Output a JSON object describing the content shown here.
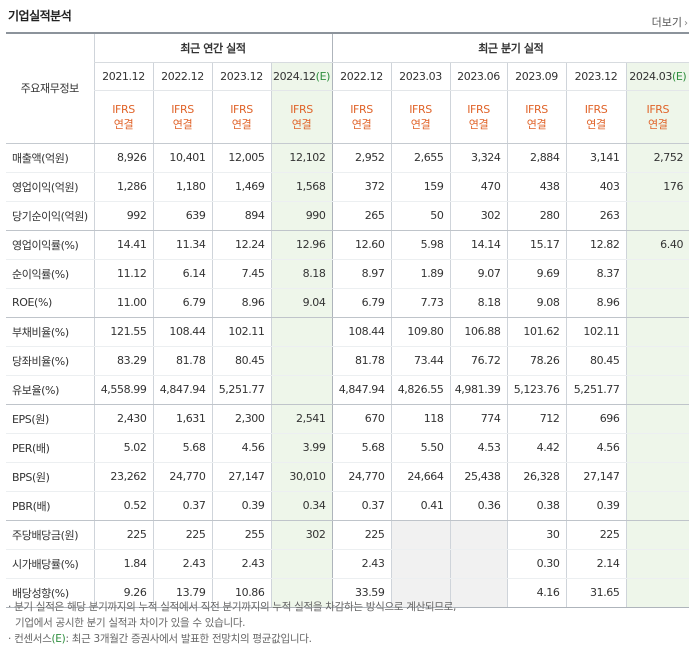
{
  "header": {
    "title": "기업실적분석",
    "more_label": "더보기"
  },
  "table": {
    "corner_label": "주요재무정보",
    "annual_label": "최근 연간 실적",
    "quarter_label": "최근 분기 실적",
    "annual_dates": [
      "2021.12",
      "2022.12",
      "2023.12",
      "2024.12(E)"
    ],
    "quarter_dates": [
      "2022.12",
      "2023.03",
      "2023.06",
      "2023.09",
      "2023.12",
      "2024.03(E)"
    ],
    "ifrs_top": "IFRS",
    "ifrs_bottom": "연결",
    "rows": [
      {
        "label": "매출액(억원)",
        "values": [
          "8,926",
          "10,401",
          "12,005",
          "12,102",
          "2,952",
          "2,655",
          "3,324",
          "2,884",
          "3,141",
          "2,752"
        ]
      },
      {
        "label": "영업이익(억원)",
        "values": [
          "1,286",
          "1,180",
          "1,469",
          "1,568",
          "372",
          "159",
          "470",
          "438",
          "403",
          "176"
        ]
      },
      {
        "label": "당기순이익(억원)",
        "values": [
          "992",
          "639",
          "894",
          "990",
          "265",
          "50",
          "302",
          "280",
          "263",
          ""
        ]
      },
      {
        "label": "영업이익률(%)",
        "values": [
          "14.41",
          "11.34",
          "12.24",
          "12.96",
          "12.60",
          "5.98",
          "14.14",
          "15.17",
          "12.82",
          "6.40"
        ]
      },
      {
        "label": "순이익률(%)",
        "values": [
          "11.12",
          "6.14",
          "7.45",
          "8.18",
          "8.97",
          "1.89",
          "9.07",
          "9.69",
          "8.37",
          ""
        ]
      },
      {
        "label": "ROE(%)",
        "values": [
          "11.00",
          "6.79",
          "8.96",
          "9.04",
          "6.79",
          "7.73",
          "8.18",
          "9.08",
          "8.96",
          ""
        ]
      },
      {
        "label": "부채비율(%)",
        "values": [
          "121.55",
          "108.44",
          "102.11",
          "",
          "108.44",
          "109.80",
          "106.88",
          "101.62",
          "102.11",
          ""
        ]
      },
      {
        "label": "당좌비율(%)",
        "values": [
          "83.29",
          "81.78",
          "80.45",
          "",
          "81.78",
          "73.44",
          "76.72",
          "78.26",
          "80.45",
          ""
        ]
      },
      {
        "label": "유보율(%)",
        "values": [
          "4,558.99",
          "4,847.94",
          "5,251.77",
          "",
          "4,847.94",
          "4,826.55",
          "4,981.39",
          "5,123.76",
          "5,251.77",
          ""
        ]
      },
      {
        "label": "EPS(원)",
        "values": [
          "2,430",
          "1,631",
          "2,300",
          "2,541",
          "670",
          "118",
          "774",
          "712",
          "696",
          ""
        ]
      },
      {
        "label": "PER(배)",
        "values": [
          "5.02",
          "5.68",
          "4.56",
          "3.99",
          "5.68",
          "5.50",
          "4.53",
          "4.42",
          "4.56",
          ""
        ]
      },
      {
        "label": "BPS(원)",
        "values": [
          "23,262",
          "24,770",
          "27,147",
          "30,010",
          "24,770",
          "24,664",
          "25,438",
          "26,328",
          "27,147",
          ""
        ]
      },
      {
        "label": "PBR(배)",
        "values": [
          "0.52",
          "0.37",
          "0.39",
          "0.34",
          "0.37",
          "0.41",
          "0.36",
          "0.38",
          "0.39",
          ""
        ]
      },
      {
        "label": "주당배당금(원)",
        "values": [
          "225",
          "225",
          "255",
          "302",
          "225",
          "",
          "",
          "30",
          "225",
          ""
        ]
      },
      {
        "label": "시가배당률(%)",
        "values": [
          "1.84",
          "2.43",
          "2.43",
          "",
          "2.43",
          "",
          "",
          "0.30",
          "2.14",
          ""
        ]
      },
      {
        "label": "배당성향(%)",
        "values": [
          "9.26",
          "13.79",
          "10.86",
          "",
          "33.59",
          "",
          "",
          "4.16",
          "31.65",
          ""
        ]
      }
    ]
  },
  "notes": {
    "line1": "· 분기 실적은 해당 분기까지의 누적 실적에서 직전 분기까지의 누적 실적을 차감하는 방식으로 계산되므로,",
    "line2": "기업에서 공시한 분기 실적과 차이가 있을 수 있습니다.",
    "line3_prefix": "· 컨센서스",
    "line3_mark": "(E)",
    "line3_suffix": ": 최근 3개월간 증권사에서 발표한 전망치의 평균값입니다."
  },
  "colors": {
    "estimate_bg": "#eef6ea",
    "ifrs_text": "#e0642a",
    "estimate_mark": "#2f8f3f",
    "blank_bg": "#f1f1f1"
  }
}
